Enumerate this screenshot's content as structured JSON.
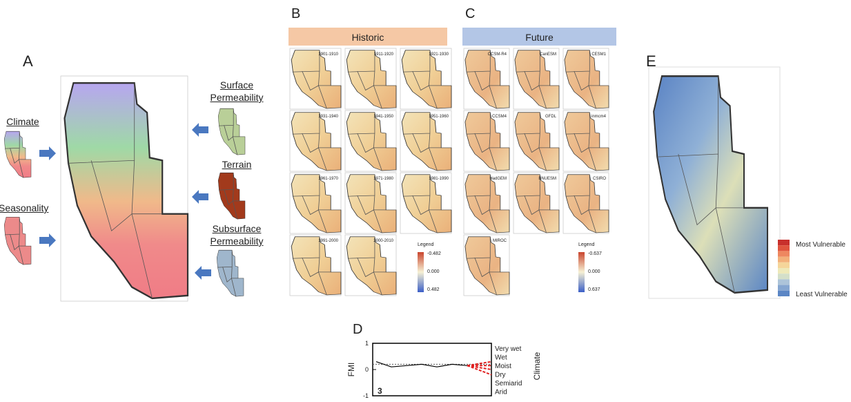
{
  "panel_a": {
    "label": "A",
    "inputs_left": [
      "Climate",
      "Seasonality"
    ],
    "inputs_right": [
      "Surface Permeability",
      "Terrain",
      "Subsurface Permeability"
    ]
  },
  "panel_b": {
    "label": "B",
    "header": "Historic",
    "maps": [
      "1901-1910",
      "1911-1920",
      "1921-1930",
      "1931-1940",
      "1941-1950",
      "1951-1960",
      "1961-1970",
      "1971-1980",
      "1981-1990",
      "1991-2000",
      "2000-2010"
    ],
    "legend": {
      "title": "Legend",
      "labels": [
        "-0.482",
        "0.000",
        "0.482"
      ]
    }
  },
  "panel_c": {
    "label": "C",
    "header": "Future",
    "maps": [
      "CCSM-R4",
      "CanESM",
      "CESM1",
      "CCSM4",
      "GFDL",
      "inmcm4",
      "HadGEM",
      "BNUESM",
      "CSIRO",
      "MIROC"
    ],
    "legend": {
      "title": "Legend",
      "labels": [
        "-0.637",
        "0.000",
        "0.637"
      ]
    }
  },
  "panel_d": {
    "label": "D",
    "y_label": "FMI",
    "y2_label": "Climate",
    "inset_label": "3",
    "ylim": [
      -1,
      1
    ],
    "yticks": [
      1,
      0,
      -1
    ],
    "climate_classes": [
      "Very wet",
      "Wet",
      "Moist",
      "Dry",
      "Semiarid",
      "Arid"
    ],
    "values": [
      0.3,
      0.1,
      0.15,
      0.2,
      0.1,
      0.2,
      0.15
    ]
  },
  "panel_e": {
    "label": "E",
    "legend": [
      "Most Vulnerable",
      "Least Vulnerable"
    ]
  }
}
